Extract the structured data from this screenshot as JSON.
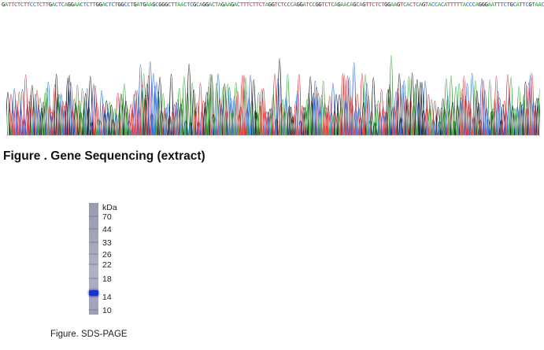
{
  "sequencing": {
    "sequence_text": "GATTCTCTTCCTCTTGACTCAGGAACTCTTGGACTCTGGCCTGATGAAGCGGGCTTAACTCGCAGGACTAGAAGACTTTCTTCTAGGTCTCCCAGGATCCGGTCTCAGAACAGCAGTTCTCTGGAAGTCACTCAGTACCACATTTTTACCCAGGGAATTTCTGCATTCGTAACAGGGTTCTCTGGAAGAGCCTACATTTTACTGA",
    "base_colors": {
      "A": "#2ca02c",
      "C": "#1f5fd6",
      "G": "#111111",
      "T": "#d62728",
      "N": "#8b2fa8"
    },
    "caption": "Figure . Gene Sequencing (extract)"
  },
  "sds_page": {
    "unit_label": "kDa",
    "markers": [
      {
        "label": "70",
        "kda": 70
      },
      {
        "label": "44",
        "kda": 44
      },
      {
        "label": "33",
        "kda": 33
      },
      {
        "label": "26",
        "kda": 26
      },
      {
        "label": "22",
        "kda": 22
      },
      {
        "label": "18",
        "kda": 18
      },
      {
        "label": "14",
        "kda": 14
      },
      {
        "label": "10",
        "kda": 10
      }
    ],
    "band_color": "#1830d8",
    "caption": "Figure. SDS-PAGE"
  }
}
